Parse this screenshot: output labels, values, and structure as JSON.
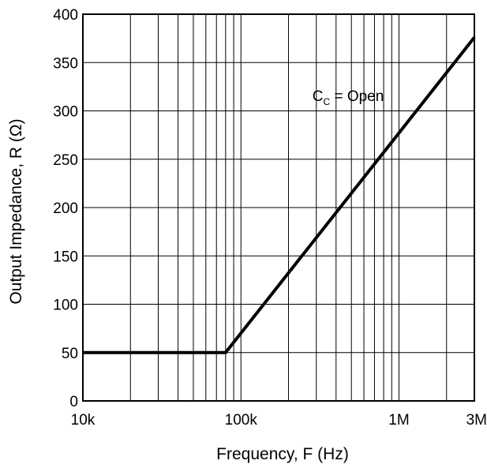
{
  "chart_data": {
    "type": "line",
    "xscale": "log",
    "xlabel": "Frequency, F (Hz)",
    "ylabel": "Output Impedance, R (Ω)",
    "xlim": [
      10000,
      3000000
    ],
    "ylim": [
      0,
      400
    ],
    "grid": true,
    "x_ticks": [
      {
        "value": 10000,
        "label": "10k"
      },
      {
        "value": 100000,
        "label": "100k"
      },
      {
        "value": 1000000,
        "label": "1M"
      },
      {
        "value": 3000000,
        "label": "3M"
      }
    ],
    "y_ticks": [
      {
        "value": 0,
        "label": "0"
      },
      {
        "value": 50,
        "label": "50"
      },
      {
        "value": 100,
        "label": "100"
      },
      {
        "value": 150,
        "label": "150"
      },
      {
        "value": 200,
        "label": "200"
      },
      {
        "value": 250,
        "label": "250"
      },
      {
        "value": 300,
        "label": "300"
      },
      {
        "value": 350,
        "label": "350"
      },
      {
        "value": 400,
        "label": "400"
      }
    ],
    "series": [
      {
        "x": [
          10000,
          80000,
          3000000
        ],
        "y": [
          50,
          50,
          376
        ],
        "color": "#000000"
      }
    ],
    "annotation": {
      "main": "C",
      "sub": "C",
      "rest": " = Open",
      "x": 400000,
      "y": 315
    }
  }
}
